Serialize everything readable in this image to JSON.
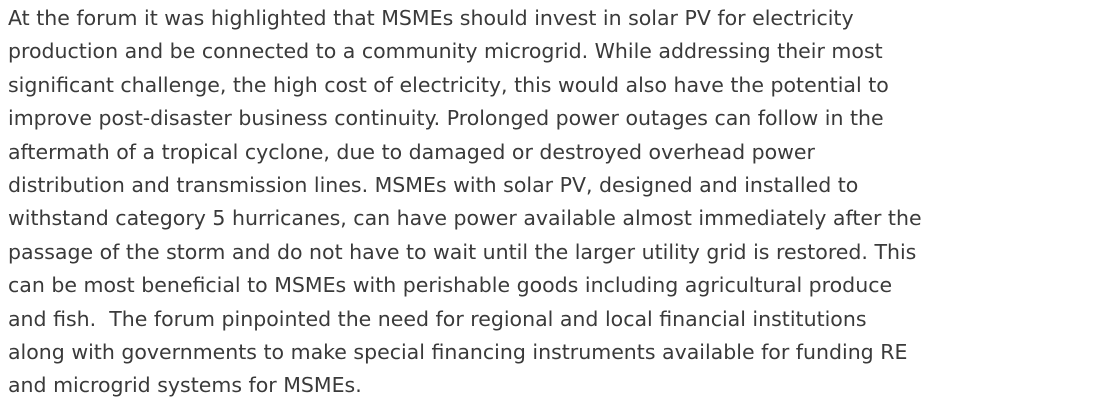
{
  "paragraph": {
    "lines": [
      "At the forum it was highlighted that MSMEs should invest in solar PV for electricity",
      "production and be connected to a community microgrid. While addressing their most",
      "significant challenge, the high cost of electricity, this would also have the potential to",
      "improve post-disaster business continuity. Prolonged power outages can follow in the",
      "aftermath of a tropical cyclone, due to damaged or destroyed overhead power",
      "distribution and transmission lines. MSMEs with solar PV, designed and installed to",
      "withstand category 5 hurricanes, can have power available almost immediately after the",
      "passage of the storm and do not have to wait until the larger utility grid is restored. This",
      "can be most beneficial to MSMEs with perishable goods including agricultural produce",
      "and fish.  The forum pinpointed the need for regional and local financial institutions",
      "along with governments to make special financing instruments available for funding RE",
      "and microgrid systems for MSMEs."
    ]
  }
}
